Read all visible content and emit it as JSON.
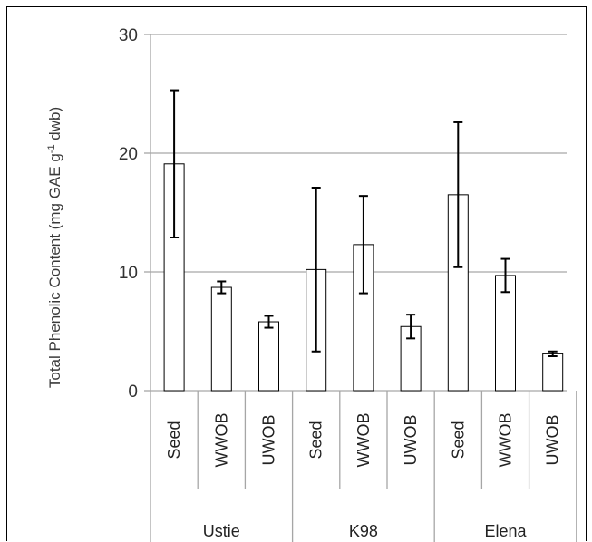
{
  "chart_data": {
    "type": "bar",
    "ylabel": "Total Phenolic Content (mg GAE g",
    "ylabel_sup": "-1",
    "ylabel_tail": " dwb)",
    "ylim": [
      0,
      30
    ],
    "yticks": [
      "0",
      "10",
      "20",
      "30"
    ],
    "grid": true,
    "groups": [
      {
        "name": "Ustie",
        "categories": [
          "Seed",
          "WWOB",
          "UWOB"
        ],
        "values": [
          19.1,
          8.7,
          5.8
        ],
        "errors": [
          6.2,
          0.5,
          0.5
        ]
      },
      {
        "name": "K98",
        "categories": [
          "Seed",
          "WWOB",
          "UWOB"
        ],
        "values": [
          10.2,
          12.3,
          5.4
        ],
        "errors": [
          6.9,
          4.1,
          1.0
        ]
      },
      {
        "name": "Elena",
        "categories": [
          "Seed",
          "WWOB",
          "UWOB"
        ],
        "values": [
          16.5,
          9.7,
          3.1
        ],
        "errors": [
          6.1,
          1.4,
          0.2
        ]
      }
    ],
    "colors": {
      "bar_fill": "#ffffff",
      "bar_stroke": "#000000",
      "grid": "#a6a6a6",
      "error": "#000000"
    }
  }
}
